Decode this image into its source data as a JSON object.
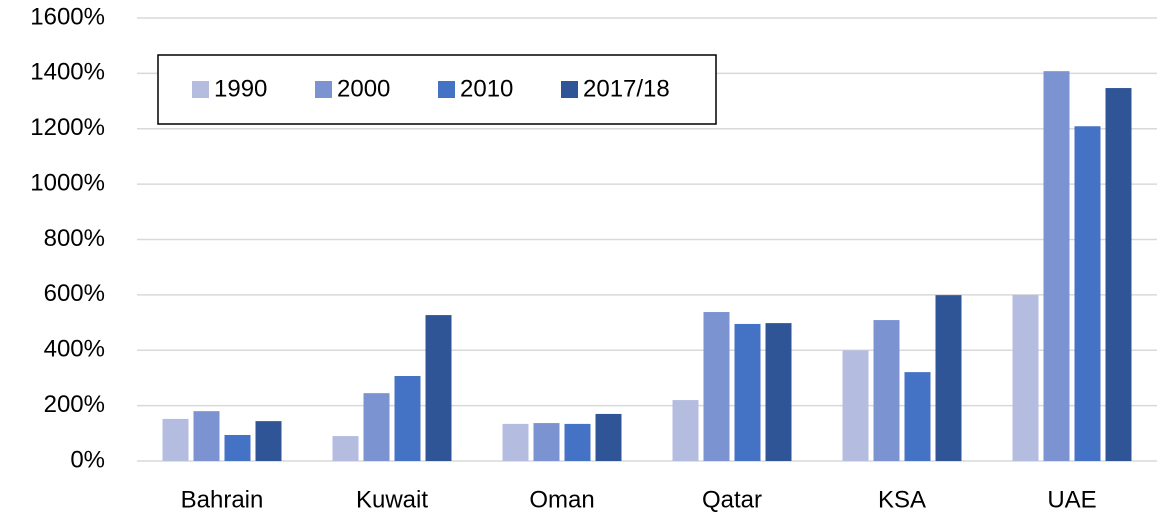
{
  "chart_data": {
    "type": "bar",
    "categories": [
      "Bahrain",
      "Kuwait",
      "Oman",
      "Qatar",
      "KSA",
      "UAE"
    ],
    "series": [
      {
        "name": "1990",
        "color": "#b4bde0",
        "values": [
          152,
          90,
          134,
          220,
          400,
          600
        ]
      },
      {
        "name": "2000",
        "color": "#7b93d1",
        "values": [
          180,
          245,
          137,
          538,
          509,
          1408
        ]
      },
      {
        "name": "2010",
        "color": "#4472c4",
        "values": [
          94,
          307,
          134,
          495,
          321,
          1209
        ]
      },
      {
        "name": "2017/18",
        "color": "#2f5597",
        "values": [
          144,
          527,
          170,
          498,
          599,
          1347
        ]
      }
    ],
    "ylim": [
      0,
      1600
    ],
    "yticks": [
      {
        "value": 0,
        "label": "0%"
      },
      {
        "value": 200,
        "label": "200%"
      },
      {
        "value": 400,
        "label": "400%"
      },
      {
        "value": 600,
        "label": "600%"
      },
      {
        "value": 800,
        "label": "800%"
      },
      {
        "value": 1000,
        "label": "1000%"
      },
      {
        "value": 1200,
        "label": "1200%"
      },
      {
        "value": 1400,
        "label": "1400%"
      },
      {
        "value": 1600,
        "label": "1600%"
      }
    ],
    "grid": true,
    "legend": "top-left"
  }
}
